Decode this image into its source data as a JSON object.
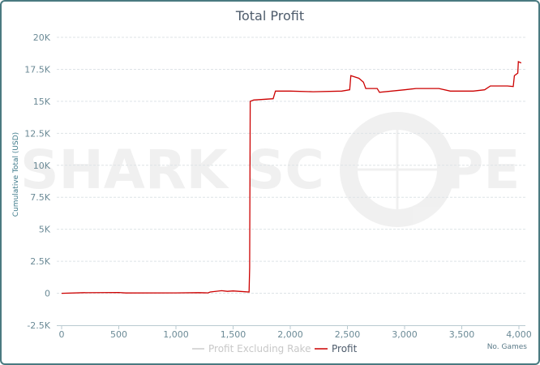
{
  "chart_data": {
    "type": "line",
    "title": "Total Profit",
    "xlabel": "No. Games",
    "ylabel": "Cumulative Total (USD)",
    "xlim": [
      0,
      4000
    ],
    "ylim": [
      -2500,
      20000
    ],
    "x_ticks": [
      0,
      500,
      1000,
      1500,
      2000,
      2500,
      3000,
      3500,
      4000
    ],
    "x_tick_labels": [
      "0",
      "500",
      "1,000",
      "1,500",
      "2,000",
      "2,500",
      "3,000",
      "3,500",
      "4,000"
    ],
    "y_ticks": [
      -2500,
      0,
      2500,
      5000,
      7500,
      10000,
      12500,
      15000,
      17500,
      20000
    ],
    "y_tick_labels": [
      "-2.5K",
      "0",
      "2.5K",
      "5K",
      "7.5K",
      "10K",
      "12.5K",
      "15K",
      "17.5K",
      "20K"
    ],
    "grid": true,
    "legend_position": "bottom",
    "watermark": "SHARK SCOPE",
    "series": [
      {
        "name": "Profit Excluding Rake",
        "color": "#cccccc",
        "hidden": true,
        "x": [],
        "y": []
      },
      {
        "name": "Profit",
        "color": "#cc0000",
        "x": [
          0,
          200,
          210,
          500,
          560,
          1000,
          1200,
          1280,
          1300,
          1400,
          1450,
          1500,
          1640,
          1645,
          1650,
          1680,
          1850,
          1870,
          2000,
          2200,
          2450,
          2520,
          2530,
          2600,
          2640,
          2660,
          2760,
          2780,
          3000,
          3100,
          3300,
          3400,
          3600,
          3700,
          3750,
          3900,
          3950,
          3960,
          3990,
          3995,
          4020
        ],
        "y": [
          0,
          50,
          40,
          60,
          20,
          30,
          50,
          30,
          100,
          200,
          150,
          180,
          100,
          2000,
          15000,
          15100,
          15200,
          15800,
          15800,
          15750,
          15800,
          15900,
          17000,
          16800,
          16500,
          16000,
          16000,
          15700,
          15900,
          16000,
          16000,
          15800,
          15800,
          15900,
          16200,
          16200,
          16150,
          17000,
          17200,
          18100,
          18000
        ]
      }
    ]
  }
}
